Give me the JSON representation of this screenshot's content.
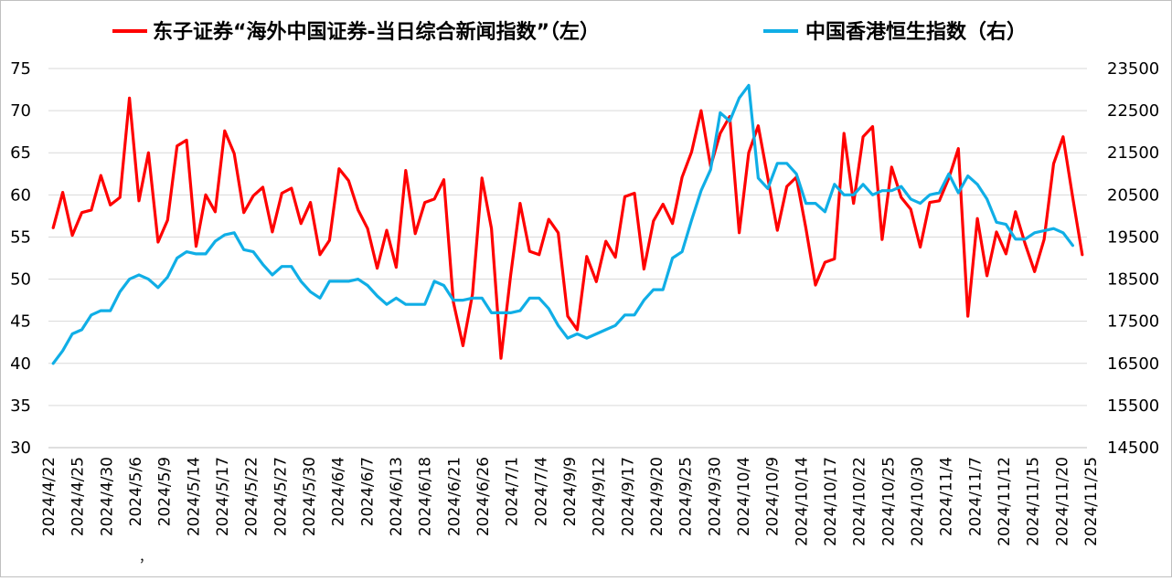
{
  "chart_data": {
    "type": "line",
    "grid": true,
    "legend_position": "top",
    "series": [
      {
        "name": "东子证券“海外中国证券-当日综合新闻指数”（左）",
        "axis": "left",
        "color": "#ff0000",
        "values": [
          56.1,
          60.3,
          55.2,
          57.9,
          58.2,
          62.3,
          58.8,
          59.7,
          71.5,
          59.3,
          65.0,
          54.4,
          57.0,
          65.8,
          66.5,
          53.9,
          60.0,
          58.0,
          67.6,
          64.9,
          57.9,
          59.9,
          60.9,
          55.6,
          60.2,
          60.8,
          56.6,
          59.1,
          52.9,
          54.6,
          63.1,
          61.7,
          58.2,
          56.0,
          51.3,
          55.8,
          51.4,
          62.9,
          55.4,
          59.1,
          59.5,
          61.8,
          47.3,
          42.1,
          48.2,
          62.0,
          56.0,
          40.6,
          50.4,
          59.0,
          53.3,
          52.9,
          57.1,
          55.5,
          45.6,
          44.0,
          52.7,
          49.7,
          54.5,
          52.6,
          59.8,
          60.2,
          51.2,
          56.9,
          58.9,
          56.6,
          62.1,
          65.1,
          70.0,
          63.4,
          67.3,
          69.3,
          55.5,
          65.0,
          68.2,
          62.0,
          55.8,
          61.0,
          62.1,
          56.0,
          49.3,
          52.0,
          52.4,
          67.3,
          59.0,
          66.9,
          68.1,
          54.7,
          63.3,
          59.7,
          58.3,
          53.8,
          59.1,
          59.3,
          62.0,
          65.5,
          45.6,
          57.2,
          50.4,
          55.6,
          53.0,
          58.0,
          54.2,
          50.9,
          54.7,
          63.7,
          66.9,
          59.7,
          52.9
        ]
      },
      {
        "name": "中国香港恒生指数（右）",
        "axis": "right",
        "color": "#10aee6",
        "values": [
          16500,
          16800,
          17200,
          17300,
          17650,
          17750,
          17750,
          18200,
          18500,
          18600,
          18500,
          18300,
          18550,
          19000,
          19150,
          19100,
          19100,
          19400,
          19550,
          19600,
          19200,
          19150,
          18850,
          18600,
          18800,
          18800,
          18450,
          18200,
          18050,
          18450,
          18450,
          18450,
          18500,
          18350,
          18100,
          17900,
          18050,
          17900,
          17900,
          17900,
          18450,
          18350,
          18000,
          18000,
          18050,
          18050,
          17700,
          17700,
          17700,
          17750,
          18050,
          18050,
          17800,
          17400,
          17100,
          17200,
          17100,
          17200,
          17300,
          17400,
          17650,
          17650,
          18000,
          18250,
          18250,
          19000,
          19150,
          19900,
          20600,
          21100,
          22450,
          22250,
          22800,
          23100,
          20900,
          20650,
          21250,
          21250,
          21000,
          20300,
          20300,
          20100,
          20750,
          20500,
          20500,
          20750,
          20500,
          20600,
          20600,
          20700,
          20400,
          20300,
          20500,
          20550,
          21000,
          20550,
          20950,
          20750,
          20400,
          19850,
          19800,
          19450,
          19450,
          19600,
          19650,
          19700,
          19600,
          19300
        ]
      }
    ],
    "left_axis": {
      "ylim": [
        30,
        75
      ],
      "ticks": [
        "30",
        "35",
        "40",
        "45",
        "50",
        "55",
        "60",
        "65",
        "70",
        "75"
      ]
    },
    "right_axis": {
      "ylim": [
        14500,
        23500
      ],
      "ticks": [
        "14500",
        "15500",
        "16500",
        "17500",
        "18500",
        "19500",
        "20500",
        "21500",
        "22500",
        "23500"
      ]
    },
    "x_tick_labels": [
      "2024/4/22",
      "2024/4/25",
      "2024/4/30",
      "2024/5/6",
      "2024/5/9",
      "2024/5/14",
      "2024/5/17",
      "2024/5/22",
      "2024/5/27",
      "2024/5/30",
      "2024/6/4",
      "2024/6/7",
      "2024/6/13",
      "2024/6/18",
      "2024/6/21",
      "2024/6/26",
      "2024/7/1",
      "2024/7/4",
      "2024/9/9",
      "2024/9/12",
      "2024/9/17",
      "2024/9/20",
      "2024/9/25",
      "2024/9/30",
      "2024/10/4",
      "2024/10/9",
      "2024/10/14",
      "2024/10/17",
      "2024/10/22",
      "2024/10/25",
      "2024/10/30",
      "2024/11/4",
      "2024/11/7",
      "2024/11/12",
      "2024/11/15",
      "2024/11/20",
      "2024/11/25"
    ],
    "stray_mark": "，"
  }
}
